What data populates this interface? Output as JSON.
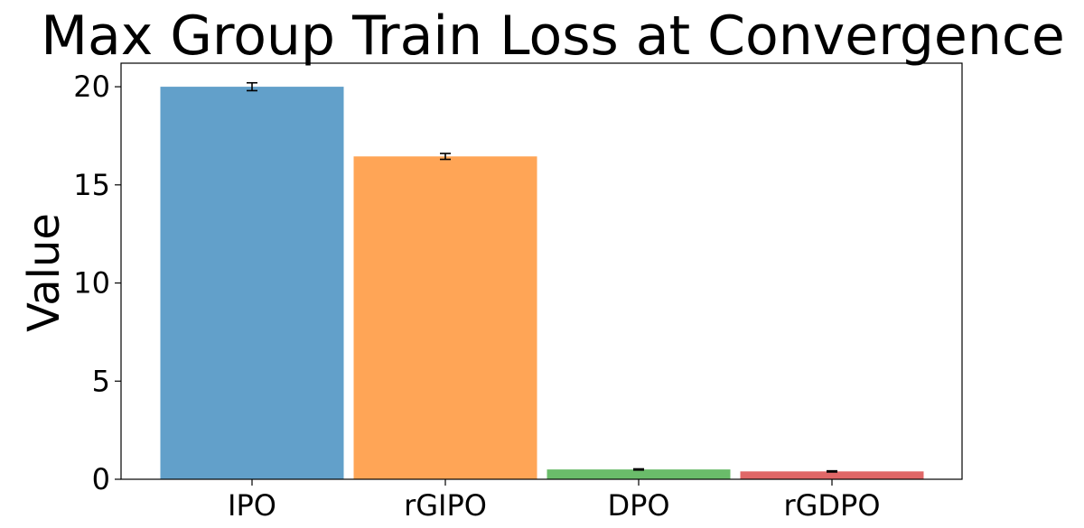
{
  "chart_data": {
    "type": "bar",
    "title": "Max Group Train Loss at Convergence",
    "xlabel": "",
    "ylabel": "Value",
    "categories": [
      "IPO",
      "rGIPO",
      "DPO",
      "rGDPO"
    ],
    "values": [
      20.0,
      16.45,
      0.5,
      0.4
    ],
    "errors": [
      0.2,
      0.15,
      0.03,
      0.03
    ],
    "colors": [
      "#62a0ca",
      "#ffa556",
      "#6abc6a",
      "#e06767"
    ],
    "yticks": [
      0,
      5,
      10,
      15,
      20
    ],
    "ylim": [
      0,
      21.2
    ],
    "grid": false,
    "legend": "none"
  }
}
